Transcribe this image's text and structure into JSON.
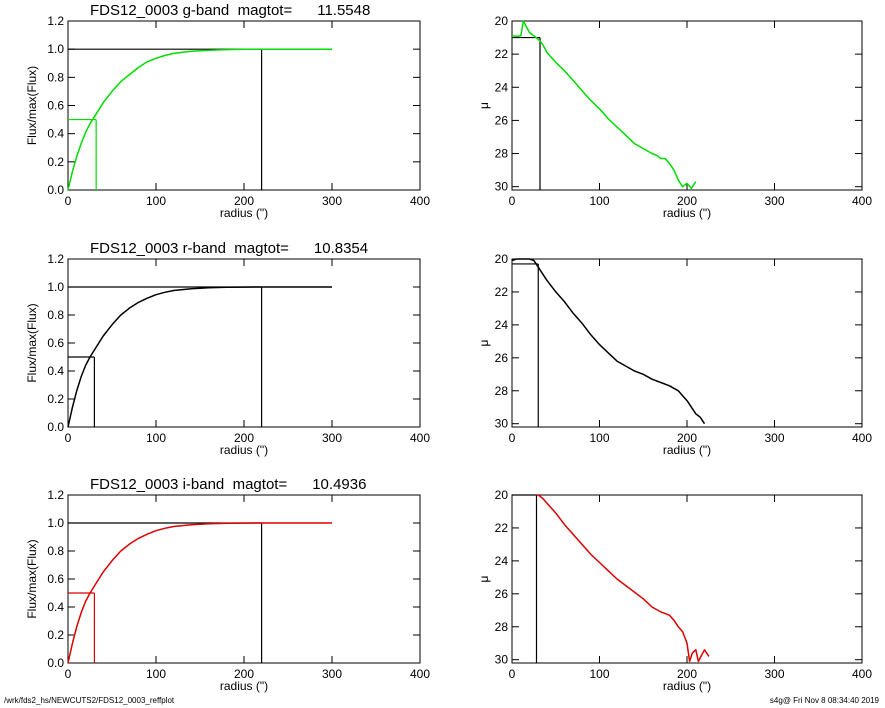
{
  "footer": {
    "left": "/wrk/fds2_hs/NEWCUTS2/FDS12_0003_reffplot",
    "right": "s4g@  Fri Nov  8 08:34:40 2019"
  },
  "chart_data": [
    {
      "type": "line",
      "panel": "g-band cumulative flux",
      "title": "FDS12_0003 g-band  magtot=      11.5548",
      "xlabel": "radius (\")",
      "ylabel": "Flux/max(Flux)",
      "xlim": [
        0,
        400
      ],
      "ylim": [
        0,
        1.2
      ],
      "xticks": [
        0,
        100,
        200,
        300,
        400
      ],
      "yticks": [
        "0.0",
        "0.2",
        "0.4",
        "0.6",
        "0.8",
        "1.0",
        "1.2"
      ],
      "color": "#00dd00",
      "series": [
        {
          "x": [
            0,
            5,
            10,
            15,
            20,
            25,
            30,
            40,
            50,
            60,
            70,
            80,
            90,
            100,
            110,
            120,
            140,
            160,
            180,
            200,
            220,
            250,
            300
          ],
          "y": [
            0,
            0.13,
            0.24,
            0.33,
            0.41,
            0.47,
            0.52,
            0.62,
            0.7,
            0.77,
            0.82,
            0.87,
            0.91,
            0.935,
            0.955,
            0.97,
            0.985,
            0.993,
            0.997,
            0.999,
            1.0,
            1.0,
            1.0
          ]
        }
      ],
      "markers": [
        {
          "kind": "half_light",
          "x": 32,
          "y": 0.5,
          "color": "#00dd00"
        },
        {
          "kind": "total",
          "x": 220,
          "y": 1.0,
          "color": "#000000"
        }
      ]
    },
    {
      "type": "line",
      "panel": "g-band surface brightness",
      "xlabel": "radius (\")",
      "ylabel": "μ",
      "xlim": [
        0,
        400
      ],
      "ylim": [
        30.2,
        20
      ],
      "xticks": [
        0,
        100,
        200,
        300,
        400
      ],
      "yticks": [
        20,
        22,
        24,
        26,
        28,
        30
      ],
      "color": "#00dd00",
      "series": [
        {
          "x": [
            0,
            5,
            10,
            13,
            16,
            20,
            25,
            30,
            35,
            40,
            50,
            60,
            70,
            80,
            90,
            100,
            110,
            120,
            130,
            140,
            150,
            160,
            165,
            170,
            175,
            180,
            185,
            190,
            195,
            200,
            205,
            210
          ],
          "y": [
            20.9,
            20.92,
            20.9,
            20.0,
            20.3,
            20.7,
            20.9,
            21.1,
            21.4,
            21.9,
            22.5,
            23.0,
            23.6,
            24.2,
            24.8,
            25.3,
            25.9,
            26.4,
            26.9,
            27.4,
            27.7,
            28.0,
            28.1,
            28.3,
            28.3,
            28.6,
            29.0,
            29.6,
            30.0,
            29.8,
            30.1,
            29.7
          ]
        }
      ],
      "markers": [
        {
          "kind": "half_light",
          "x": 32,
          "y": 21.0,
          "color": "#000000"
        }
      ]
    },
    {
      "type": "line",
      "panel": "r-band cumulative flux",
      "title": "FDS12_0003 r-band  magtot=      10.8354",
      "xlabel": "radius (\")",
      "ylabel": "Flux/max(Flux)",
      "xlim": [
        0,
        400
      ],
      "ylim": [
        0,
        1.2
      ],
      "xticks": [
        0,
        100,
        200,
        300,
        400
      ],
      "yticks": [
        "0.0",
        "0.2",
        "0.4",
        "0.6",
        "0.8",
        "1.0",
        "1.2"
      ],
      "color": "#000000",
      "series": [
        {
          "x": [
            0,
            5,
            10,
            15,
            20,
            25,
            30,
            40,
            50,
            60,
            70,
            80,
            90,
            100,
            110,
            120,
            140,
            160,
            180,
            200,
            220,
            250,
            300
          ],
          "y": [
            0,
            0.14,
            0.26,
            0.36,
            0.44,
            0.5,
            0.55,
            0.65,
            0.73,
            0.8,
            0.85,
            0.89,
            0.92,
            0.945,
            0.962,
            0.975,
            0.988,
            0.995,
            0.998,
            0.999,
            1.0,
            1.0,
            1.0
          ]
        }
      ],
      "markers": [
        {
          "kind": "half_light",
          "x": 30,
          "y": 0.5,
          "color": "#000000"
        },
        {
          "kind": "total",
          "x": 220,
          "y": 1.0,
          "color": "#000000"
        }
      ]
    },
    {
      "type": "line",
      "panel": "r-band surface brightness",
      "xlabel": "radius (\")",
      "ylabel": "μ",
      "xlim": [
        0,
        400
      ],
      "ylim": [
        30.2,
        20
      ],
      "xticks": [
        0,
        100,
        200,
        300,
        400
      ],
      "yticks": [
        20,
        22,
        24,
        26,
        28,
        30
      ],
      "color": "#000000",
      "series": [
        {
          "x": [
            0,
            5,
            10,
            15,
            20,
            25,
            30,
            35,
            40,
            50,
            60,
            70,
            80,
            90,
            100,
            110,
            120,
            130,
            140,
            150,
            160,
            170,
            180,
            190,
            195,
            200,
            205,
            210,
            215,
            220
          ],
          "y": [
            20.1,
            20.0,
            19.95,
            19.9,
            20.0,
            20.1,
            20.5,
            20.9,
            21.3,
            22.0,
            22.6,
            23.3,
            23.9,
            24.6,
            25.2,
            25.7,
            26.2,
            26.5,
            26.8,
            27.0,
            27.3,
            27.5,
            27.7,
            28.0,
            28.3,
            28.6,
            29.0,
            29.4,
            29.6,
            30.0
          ]
        }
      ],
      "markers": [
        {
          "kind": "half_light",
          "x": 30,
          "y": 20.3,
          "color": "#000000"
        }
      ]
    },
    {
      "type": "line",
      "panel": "i-band cumulative flux",
      "title": "FDS12_0003 i-band  magtot=      10.4936",
      "xlabel": "radius (\")",
      "ylabel": "Flux/max(Flux)",
      "xlim": [
        0,
        400
      ],
      "ylim": [
        0,
        1.2
      ],
      "xticks": [
        0,
        100,
        200,
        300,
        400
      ],
      "yticks": [
        "0.0",
        "0.2",
        "0.4",
        "0.6",
        "0.8",
        "1.0",
        "1.2"
      ],
      "color": "#dd0000",
      "series": [
        {
          "x": [
            0,
            5,
            10,
            15,
            20,
            25,
            30,
            40,
            50,
            60,
            70,
            80,
            90,
            100,
            110,
            120,
            140,
            160,
            180,
            200,
            220,
            250,
            300
          ],
          "y": [
            0,
            0.14,
            0.26,
            0.36,
            0.44,
            0.5,
            0.55,
            0.65,
            0.73,
            0.8,
            0.85,
            0.89,
            0.92,
            0.945,
            0.962,
            0.975,
            0.988,
            0.995,
            0.998,
            0.999,
            1.0,
            1.0,
            1.0
          ]
        }
      ],
      "markers": [
        {
          "kind": "half_light",
          "x": 30,
          "y": 0.5,
          "color": "#dd0000"
        },
        {
          "kind": "total",
          "x": 220,
          "y": 1.0,
          "color": "#000000"
        }
      ]
    },
    {
      "type": "line",
      "panel": "i-band surface brightness",
      "xlabel": "radius (\")",
      "ylabel": "μ",
      "xlim": [
        0,
        400
      ],
      "ylim": [
        30.2,
        20
      ],
      "xticks": [
        0,
        100,
        200,
        300,
        400
      ],
      "yticks": [
        20,
        22,
        24,
        26,
        28,
        30
      ],
      "color": "#dd0000",
      "series": [
        {
          "x": [
            28,
            30,
            35,
            40,
            50,
            60,
            70,
            80,
            90,
            100,
            110,
            120,
            130,
            140,
            150,
            160,
            170,
            180,
            185,
            190,
            195,
            200,
            203,
            206,
            210,
            213,
            216,
            220,
            225
          ],
          "y": [
            20.0,
            20.0,
            20.2,
            20.5,
            21.1,
            21.8,
            22.4,
            23.0,
            23.6,
            24.1,
            24.6,
            25.1,
            25.5,
            25.9,
            26.3,
            26.8,
            27.1,
            27.3,
            27.6,
            28.0,
            28.3,
            29.0,
            30.1,
            29.6,
            29.4,
            30.1,
            29.8,
            29.4,
            29.8
          ]
        }
      ],
      "markers": [
        {
          "kind": "half_light",
          "x": 28,
          "y": 20.0,
          "color": "#000000"
        }
      ]
    }
  ]
}
